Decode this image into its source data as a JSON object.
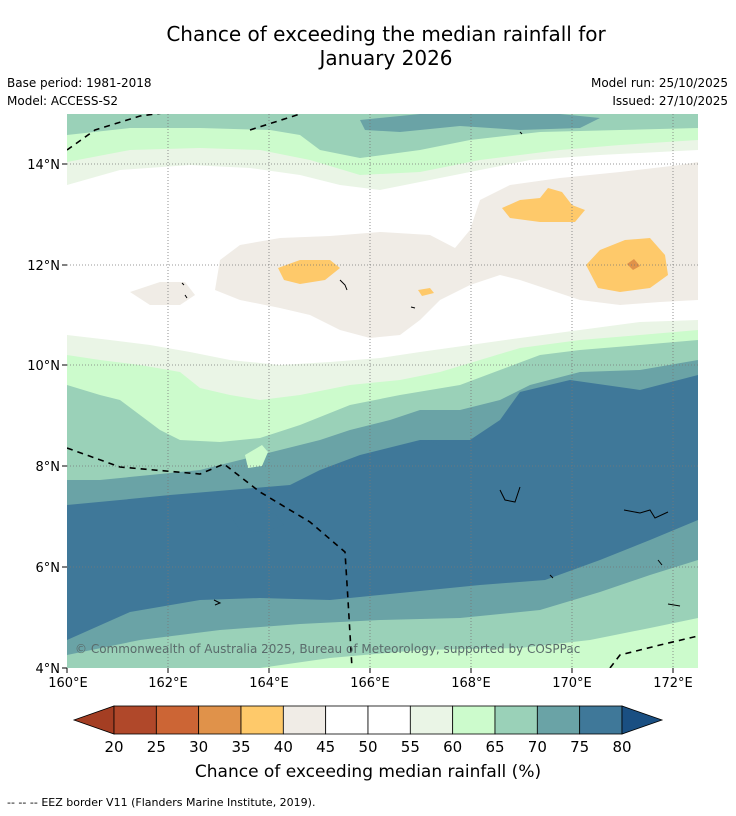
{
  "title_line1": "Chance of exceeding the median rainfall for",
  "title_line2": "January 2026",
  "base_period": "Base period: 1981-2018",
  "model": "Model: ACCESS-S2",
  "model_run": "Model run: 25/10/2025",
  "issued": "Issued: 27/10/2025",
  "copyright": "© Commonwealth of Australia 2025, Bureau of Meteorology, supported by COSPPac",
  "x_ticks": [
    "160°E",
    "162°E",
    "164°E",
    "166°E",
    "168°E",
    "170°E",
    "172°E"
  ],
  "y_ticks": [
    "14°N",
    "12°N",
    "10°N",
    "8°N",
    "6°N",
    "4°N"
  ],
  "colorbar": {
    "ticks": [
      "20",
      "25",
      "30",
      "35",
      "40",
      "45",
      "50",
      "55",
      "60",
      "65",
      "70",
      "75",
      "80"
    ],
    "colors": [
      "#b0482a",
      "#cc6535",
      "#e0924a",
      "#fec96a",
      "#f0ece6",
      "#ffffff",
      "#ffffff",
      "#eaf5e6",
      "#ccfbcc",
      "#9ad1b8",
      "#6aa3a6",
      "#3f7899",
      "#1e5086"
    ],
    "under_color": "#a43e23",
    "over_color": "#1a4f82",
    "label": "Chance of exceeding median rainfall (%)"
  },
  "legend_note": "EEZ border V11 (Flanders Marine Institute, 2019).",
  "legend_symbol": "-- -- --"
}
